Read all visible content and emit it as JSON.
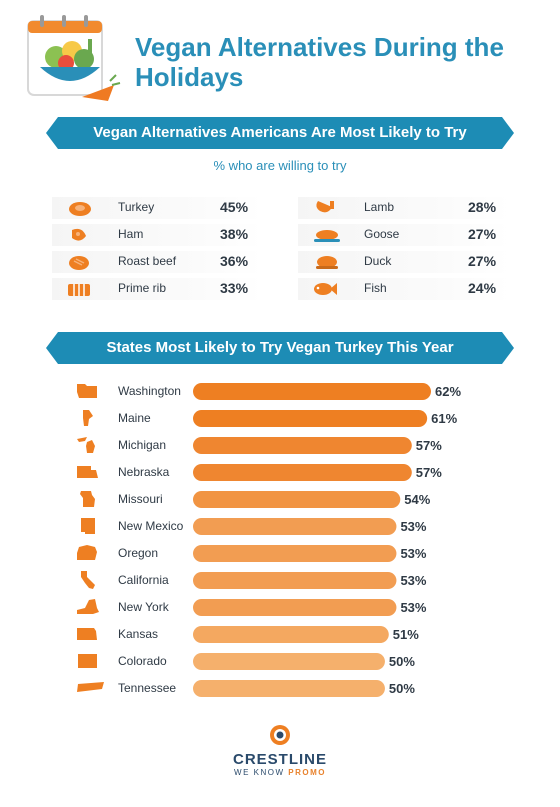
{
  "title": "Vegan Alternatives During the Holidays",
  "section1": {
    "banner": "Vegan Alternatives Americans Are Most Likely to Try",
    "subtitle": "% who are willing to try",
    "items": [
      {
        "label": "Turkey",
        "value": "45%",
        "icon": "turkey-icon"
      },
      {
        "label": "Ham",
        "value": "38%",
        "icon": "ham-icon"
      },
      {
        "label": "Roast beef",
        "value": "36%",
        "icon": "roast-beef-icon"
      },
      {
        "label": "Prime rib",
        "value": "33%",
        "icon": "prime-rib-icon"
      },
      {
        "label": "Lamb",
        "value": "28%",
        "icon": "lamb-icon"
      },
      {
        "label": "Goose",
        "value": "27%",
        "icon": "goose-icon"
      },
      {
        "label": "Duck",
        "value": "27%",
        "icon": "duck-icon"
      },
      {
        "label": "Fish",
        "value": "24%",
        "icon": "fish-icon"
      }
    ]
  },
  "section2": {
    "banner": "States Most Likely to Try Vegan Turkey This Year"
  },
  "chart_data": {
    "type": "bar",
    "title": "States Most Likely to Try Vegan Turkey This Year",
    "categories": [
      "Washington",
      "Maine",
      "Michigan",
      "Nebraska",
      "Missouri",
      "New Mexico",
      "Oregon",
      "California",
      "New York",
      "Kansas",
      "Colorado",
      "Tennessee"
    ],
    "values": [
      62,
      61,
      57,
      57,
      54,
      53,
      53,
      53,
      53,
      51,
      50,
      50
    ],
    "value_labels": [
      "62%",
      "61%",
      "57%",
      "57%",
      "54%",
      "53%",
      "53%",
      "53%",
      "53%",
      "51%",
      "50%",
      "50%"
    ],
    "unit": "%",
    "xlim": [
      0,
      62
    ],
    "orientation": "horizontal",
    "colors": [
      "#ee7f22",
      "#ee7f22",
      "#ef8630",
      "#ef8630",
      "#f19442",
      "#f29d52",
      "#f29d52",
      "#f29d52",
      "#f29d52",
      "#f4a860",
      "#f5b06c",
      "#f5b06c"
    ]
  },
  "footer": {
    "brand": "CRESTLINE",
    "tagline_prefix": "WE KNOW ",
    "tagline_emphasis": "PROMO"
  },
  "colors": {
    "accent_blue": "#2a8fb8",
    "banner_blue": "#1d8cb5",
    "orange": "#ee7f22",
    "text": "#2f3a45"
  }
}
